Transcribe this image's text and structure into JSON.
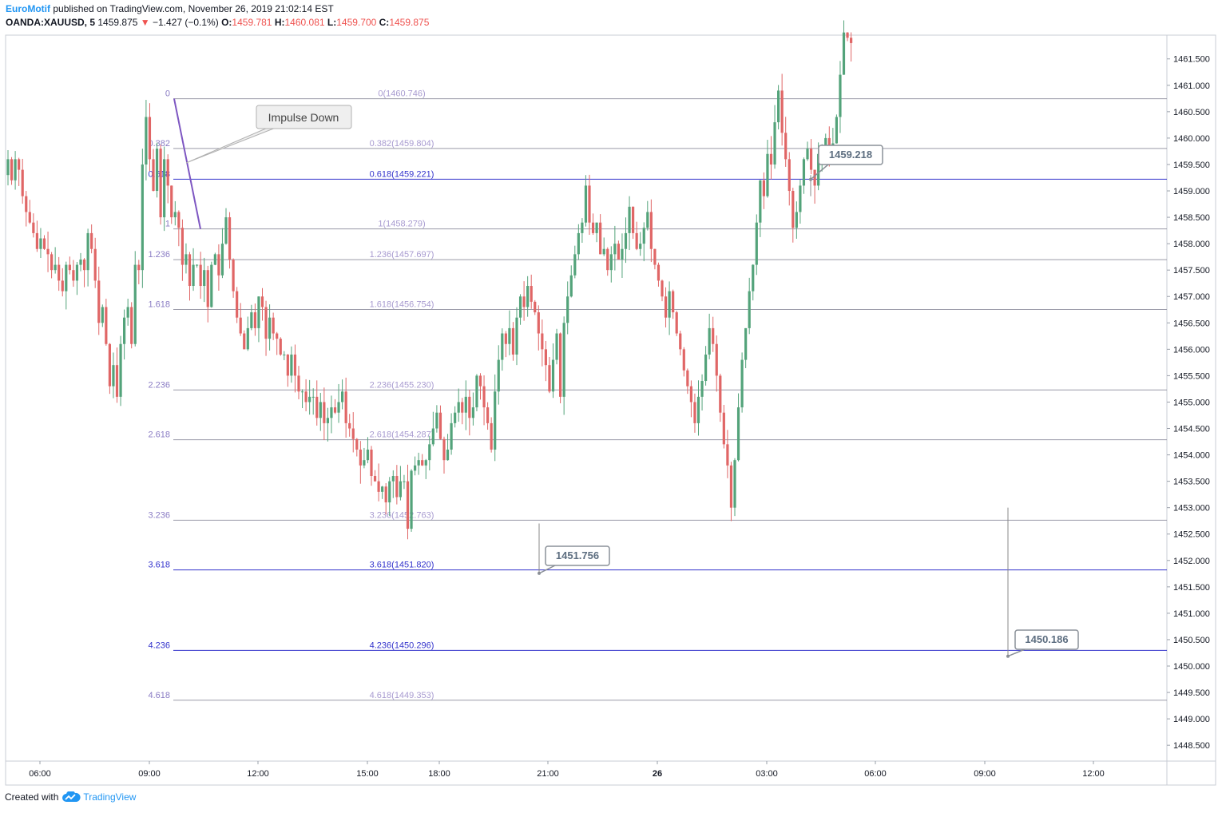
{
  "header": {
    "author": "EuroMotif",
    "published": "published on TradingView.com, November 26, 2019 21:02:14 EST",
    "symbol": "OANDA:XAUUSD, 5",
    "last": "1459.875",
    "change_arrow": "▼",
    "change": "−1.427 (−0.1%)",
    "o_label": "O:",
    "o": "1459.781",
    "h_label": "H:",
    "h": "1460.081",
    "l_label": "L:",
    "l": "1459.700",
    "c_label": "C:",
    "c": "1459.875"
  },
  "footer": {
    "created_with": "Created with",
    "brand": "TradingView"
  },
  "colors": {
    "up": "#26a69a",
    "up_candle": "#53a37a",
    "down_candle": "#e06666",
    "fib_light": "#a89bd0",
    "fib_strong": "#3333cc",
    "callout_border": "#8a9098",
    "callout_text": "#5d6e80"
  },
  "chart_data": {
    "type": "candlestick",
    "symbol": "OANDA:XAUUSD",
    "interval": "5",
    "ylim": [
      1448.2,
      1461.95
    ],
    "y_ticks": [
      "1461.500",
      "1461.000",
      "1460.500",
      "1460.000",
      "1459.500",
      "1459.000",
      "1458.500",
      "1458.000",
      "1457.500",
      "1457.000",
      "1456.500",
      "1456.000",
      "1455.500",
      "1455.000",
      "1454.500",
      "1454.000",
      "1453.500",
      "1453.000",
      "1452.500",
      "1452.000",
      "1451.500",
      "1451.000",
      "1450.500",
      "1450.000",
      "1449.500",
      "1449.000",
      "1448.500"
    ],
    "x_ticks": [
      "06:00",
      "09:00",
      "12:00",
      "15:00",
      "18:00",
      "21:00",
      "26",
      "03:00",
      "06:00",
      "09:00",
      "12:00"
    ],
    "fib_levels": [
      {
        "ratio": "0",
        "label": "0(1460.746)",
        "price": 1460.746,
        "strong": false
      },
      {
        "ratio": "0.382",
        "label": "0.382(1459.804)",
        "price": 1459.804,
        "strong": false
      },
      {
        "ratio": "0.618",
        "label": "0.618(1459.221)",
        "price": 1459.221,
        "strong": true
      },
      {
        "ratio": "1",
        "label": "1(1458.279)",
        "price": 1458.279,
        "strong": false
      },
      {
        "ratio": "1.236",
        "label": "1.236(1457.697)",
        "price": 1457.697,
        "strong": false
      },
      {
        "ratio": "1.618",
        "label": "1.618(1456.754)",
        "price": 1456.754,
        "strong": false
      },
      {
        "ratio": "2.236",
        "label": "2.236(1455.230)",
        "price": 1455.23,
        "strong": false
      },
      {
        "ratio": "2.618",
        "label": "2.618(1454.287)",
        "price": 1454.287,
        "strong": false
      },
      {
        "ratio": "3.236",
        "label": "3.236(1452.763)",
        "price": 1452.763,
        "strong": false
      },
      {
        "ratio": "3.618",
        "label": "3.618(1451.820)",
        "price": 1451.82,
        "strong": true
      },
      {
        "ratio": "4.236",
        "label": "4.236(1450.296)",
        "price": 1450.296,
        "strong": true
      },
      {
        "ratio": "4.618",
        "label": "4.618(1449.353)",
        "price": 1449.353,
        "strong": false
      }
    ],
    "callouts": [
      {
        "text": "1459.218",
        "price": 1459.218
      },
      {
        "text": "1451.756",
        "price": 1451.756
      },
      {
        "text": "1450.186",
        "price": 1450.186
      }
    ],
    "annotation": {
      "text": "Impulse Down"
    },
    "price_path": [
      1459.3,
      1459.6,
      1459.2,
      1459.6,
      1459.4,
      1458.9,
      1458.6,
      1458.4,
      1458.2,
      1457.9,
      1458.1,
      1457.9,
      1457.8,
      1457.5,
      1457.6,
      1457.3,
      1457.1,
      1457.6,
      1457.5,
      1457.3,
      1457.6,
      1457.7,
      1457.5,
      1458.2,
      1457.9,
      1457.3,
      1456.5,
      1456.8,
      1456.1,
      1455.3,
      1455.7,
      1455.1,
      1456.1,
      1456.6,
      1456.8,
      1456.1,
      1457.6,
      1457.5,
      1459.5,
      1460.4,
      1459.6,
      1459.0,
      1459.8,
      1458.5,
      1459.6,
      1459.1,
      1458.5,
      1458.6,
      1458.3,
      1457.6,
      1457.8,
      1457.2,
      1457.6,
      1457.6,
      1457.2,
      1457.5,
      1456.8,
      1457.6,
      1457.8,
      1457.4,
      1458.0,
      1458.5,
      1457.7,
      1457.1,
      1456.6,
      1456.3,
      1456.0,
      1456.4,
      1456.7,
      1456.4,
      1457.0,
      1456.8,
      1456.2,
      1456.6,
      1456.3,
      1456.2,
      1455.9,
      1455.9,
      1455.5,
      1455.9,
      1455.5,
      1455.2,
      1455.2,
      1455.0,
      1455.1,
      1455.1,
      1454.7,
      1455.0,
      1454.6,
      1454.7,
      1454.9,
      1454.8,
      1455.0,
      1455.2,
      1454.6,
      1454.5,
      1454.3,
      1454.1,
      1453.8,
      1453.9,
      1454.1,
      1453.6,
      1453.5,
      1453.3,
      1453.4,
      1453.1,
      1453.5,
      1453.6,
      1453.2,
      1453.5,
      1453.5,
      1452.6,
      1453.7,
      1453.8,
      1453.9,
      1453.8,
      1453.9,
      1454.2,
      1454.5,
      1454.8,
      1454.3,
      1453.9,
      1454.1,
      1454.6,
      1454.8,
      1455.0,
      1454.8,
      1455.1,
      1454.7,
      1454.9,
      1455.5,
      1455.3,
      1454.9,
      1454.6,
      1454.1,
      1455.2,
      1455.8,
      1456.3,
      1456.1,
      1456.4,
      1455.9,
      1456.6,
      1457.0,
      1456.8,
      1457.2,
      1456.9,
      1456.7,
      1456.3,
      1456.0,
      1455.7,
      1455.2,
      1455.8,
      1456.3,
      1455.1,
      1456.5,
      1457.0,
      1457.4,
      1457.8,
      1458.2,
      1458.4,
      1459.1,
      1458.4,
      1458.2,
      1458.4,
      1457.8,
      1457.9,
      1457.5,
      1457.8,
      1458.0,
      1457.7,
      1457.9,
      1458.2,
      1458.7,
      1458.2,
      1457.9,
      1458.0,
      1458.3,
      1458.6,
      1457.9,
      1457.6,
      1457.3,
      1457.0,
      1456.6,
      1457.1,
      1456.7,
      1456.3,
      1456.0,
      1455.6,
      1455.3,
      1455.0,
      1454.6,
      1455.1,
      1455.4,
      1455.9,
      1456.4,
      1456.1,
      1455.5,
      1454.8,
      1454.2,
      1453.8,
      1453.0,
      1453.9,
      1454.9,
      1455.8,
      1456.4,
      1457.1,
      1457.6,
      1458.4,
      1459.2,
      1458.9,
      1459.7,
      1459.5,
      1460.3,
      1460.9,
      1460.1,
      1459.6,
      1459.0,
      1458.3,
      1458.6,
      1459.1,
      1459.6,
      1459.8,
      1459.4,
      1459.1,
      1459.7,
      1459.8,
      1460.0,
      1459.6,
      1459.9,
      1460.4,
      1461.2,
      1462.0,
      1461.9,
      1461.8
    ]
  }
}
